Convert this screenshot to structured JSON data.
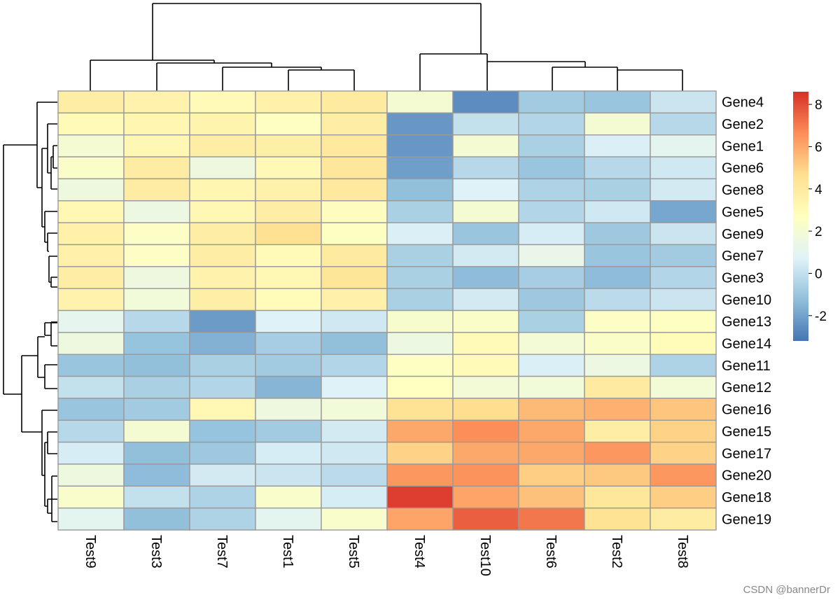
{
  "watermark": "CSDN @bannerDr",
  "chart_data": {
    "type": "heatmap",
    "title": "",
    "rows": [
      "Gene4",
      "Gene2",
      "Gene1",
      "Gene6",
      "Gene8",
      "Gene5",
      "Gene9",
      "Gene7",
      "Gene3",
      "Gene10",
      "Gene13",
      "Gene14",
      "Gene11",
      "Gene12",
      "Gene16",
      "Gene15",
      "Gene17",
      "Gene20",
      "Gene18",
      "Gene19"
    ],
    "columns": [
      "Test9",
      "Test3",
      "Test7",
      "Test1",
      "Test5",
      "Test4",
      "Test10",
      "Test6",
      "Test2",
      "Test8"
    ],
    "values": [
      [
        3.8,
        3.5,
        3.0,
        3.6,
        4.0,
        2.0,
        -2.6,
        -0.8,
        -1.0,
        0.2
      ],
      [
        3.0,
        3.3,
        3.4,
        2.6,
        3.8,
        -2.3,
        0.0,
        -0.4,
        2.0,
        -0.3
      ],
      [
        2.0,
        3.2,
        3.8,
        3.7,
        4.1,
        -2.3,
        2.0,
        -0.6,
        0.6,
        1.0
      ],
      [
        2.4,
        3.9,
        1.6,
        3.1,
        4.2,
        -2.1,
        -0.3,
        -1.0,
        -0.3,
        0.3
      ],
      [
        1.6,
        3.9,
        3.3,
        3.6,
        4.1,
        -1.2,
        0.7,
        -0.5,
        -0.6,
        0.4
      ],
      [
        3.2,
        1.5,
        3.2,
        3.8,
        2.8,
        -0.6,
        2.0,
        -0.4,
        0.3,
        -1.9
      ],
      [
        3.6,
        2.5,
        3.8,
        4.6,
        2.6,
        0.6,
        -1.0,
        0.5,
        -0.9,
        0.2
      ],
      [
        3.6,
        2.5,
        3.8,
        3.0,
        4.0,
        -0.6,
        0.4,
        1.3,
        -1.0,
        -0.8
      ],
      [
        3.8,
        1.6,
        3.5,
        3.2,
        4.3,
        -0.6,
        -1.3,
        -0.7,
        -1.3,
        -0.4
      ],
      [
        3.5,
        1.8,
        3.7,
        2.9,
        3.6,
        -0.6,
        0.4,
        -0.9,
        -0.2,
        0.2
      ],
      [
        1.1,
        -0.3,
        -2.2,
        0.7,
        0.3,
        2.2,
        2.4,
        -0.6,
        2.5,
        2.6
      ],
      [
        1.6,
        -1.1,
        -1.6,
        -0.7,
        -1.2,
        1.5,
        3.0,
        1.9,
        2.4,
        2.9
      ],
      [
        -1.0,
        -1.2,
        -0.6,
        -0.8,
        -0.4,
        2.6,
        3.0,
        0.6,
        1.5,
        -0.5
      ],
      [
        0.0,
        -0.6,
        -0.4,
        -1.5,
        0.7,
        2.7,
        1.9,
        1.8,
        4.0,
        1.9
      ],
      [
        -1.0,
        -0.8,
        3.2,
        1.6,
        1.8,
        4.5,
        4.7,
        5.6,
        5.8,
        5.3
      ],
      [
        -0.3,
        2.0,
        -1.1,
        -0.8,
        0.4,
        6.0,
        6.6,
        6.0,
        3.8,
        5.0
      ],
      [
        0.5,
        -1.2,
        -0.9,
        0.5,
        0.3,
        5.0,
        6.0,
        6.0,
        6.4,
        5.0
      ],
      [
        1.6,
        -1.3,
        0.4,
        0.2,
        -0.2,
        6.4,
        6.5,
        5.1,
        5.2,
        6.4
      ],
      [
        2.3,
        0.0,
        -0.5,
        2.3,
        0.5,
        8.3,
        6.1,
        5.4,
        4.2,
        5.1
      ],
      [
        1.0,
        -1.2,
        -0.5,
        1.0,
        2.3,
        6.1,
        7.6,
        7.1,
        4.5,
        3.9
      ]
    ],
    "colorbar": {
      "range": [
        -3.2,
        8.6
      ],
      "ticks": [
        -2,
        0,
        2,
        4,
        6,
        8
      ],
      "colors": [
        "#4575B4",
        "#91BFDB",
        "#E0F3F8",
        "#FFFFBF",
        "#FEE090",
        "#FC8D59",
        "#D73027"
      ]
    },
    "row_dendrogram": true,
    "column_dendrogram": true
  }
}
